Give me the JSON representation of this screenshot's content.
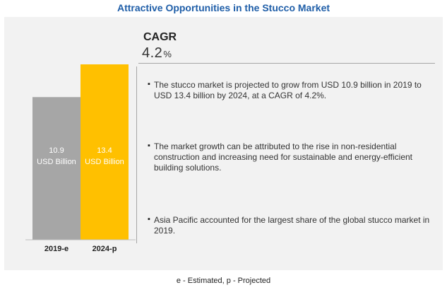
{
  "header": {
    "title": "Attractive Opportunities in the Stucco Market"
  },
  "cagr": {
    "label": "CAGR",
    "value": "4.2",
    "unit": "%"
  },
  "bullets": [
    "The stucco market is projected to grow from USD 10.9 billion in 2019 to USD 13.4 billion by 2024, at a CAGR of 4.2%.",
    "The market growth can be attributed to the rise in non-residential construction and increasing need for sustainable and energy-efficient building solutions.",
    "Asia Pacific accounted for the largest share of the global stucco market in 2019."
  ],
  "footnote": "e - Estimated, p - Projected",
  "colors": {
    "title": "#1f5ea8",
    "panel": "#f2f2f2",
    "bar_2019": "#a6a6a6",
    "bar_2024": "#ffc000"
  },
  "chart_data": {
    "type": "bar",
    "categories": [
      "2019-e",
      "2024-p"
    ],
    "values": [
      10.9,
      13.4
    ],
    "value_labels": [
      [
        "10.9",
        "USD Billion"
      ],
      [
        "13.4",
        "USD Billion"
      ]
    ],
    "colors": [
      "#a6a6a6",
      "#ffc000"
    ],
    "title": "",
    "xlabel": "",
    "ylabel": "",
    "ylim": [
      0,
      13.4
    ],
    "grid": false
  }
}
